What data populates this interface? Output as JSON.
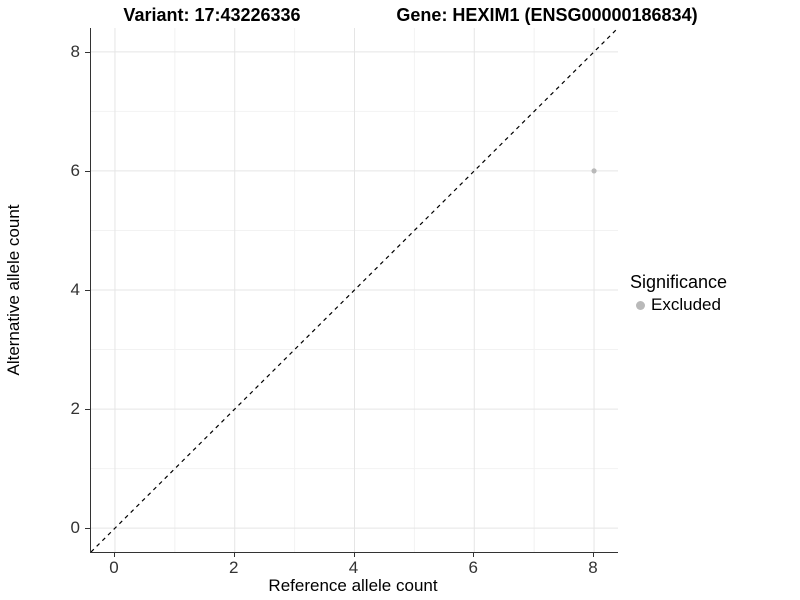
{
  "titles": {
    "variant": "Variant: 17:43226336",
    "gene": "Gene: HEXIM1 (ENSG00000186834)"
  },
  "legend": {
    "title": "Significance",
    "items": [
      {
        "label": "Excluded",
        "color": "#b9b9b9"
      }
    ]
  },
  "colors": {
    "grid_major": "#e5e5e5",
    "grid_minor": "#f2f2f2",
    "axis_line": "#333333",
    "identity_line": "#000000",
    "point": "#b9b9b9",
    "background": "#ffffff"
  },
  "chart_data": {
    "type": "scatter",
    "title_left": "Variant: 17:43226336",
    "title_right": "Gene: HEXIM1 (ENSG00000186834)",
    "xlabel": "Reference allele count",
    "ylabel": "Alternative allele count",
    "xlim": [
      -0.4,
      8.4
    ],
    "ylim": [
      -0.4,
      8.4
    ],
    "xticks": [
      0,
      2,
      4,
      6,
      8
    ],
    "yticks": [
      0,
      2,
      4,
      6,
      8
    ],
    "x_minor": [
      1,
      3,
      5,
      7
    ],
    "y_minor": [
      1,
      3,
      5,
      7
    ],
    "grid": true,
    "legend_position": "right",
    "identity_line": {
      "from": [
        -0.4,
        -0.4
      ],
      "to": [
        8.4,
        8.4
      ],
      "style": "dashed",
      "color": "#000000"
    },
    "series": [
      {
        "name": "Excluded",
        "color": "#b9b9b9",
        "points": [
          {
            "x": 8,
            "y": 6
          }
        ]
      }
    ]
  }
}
